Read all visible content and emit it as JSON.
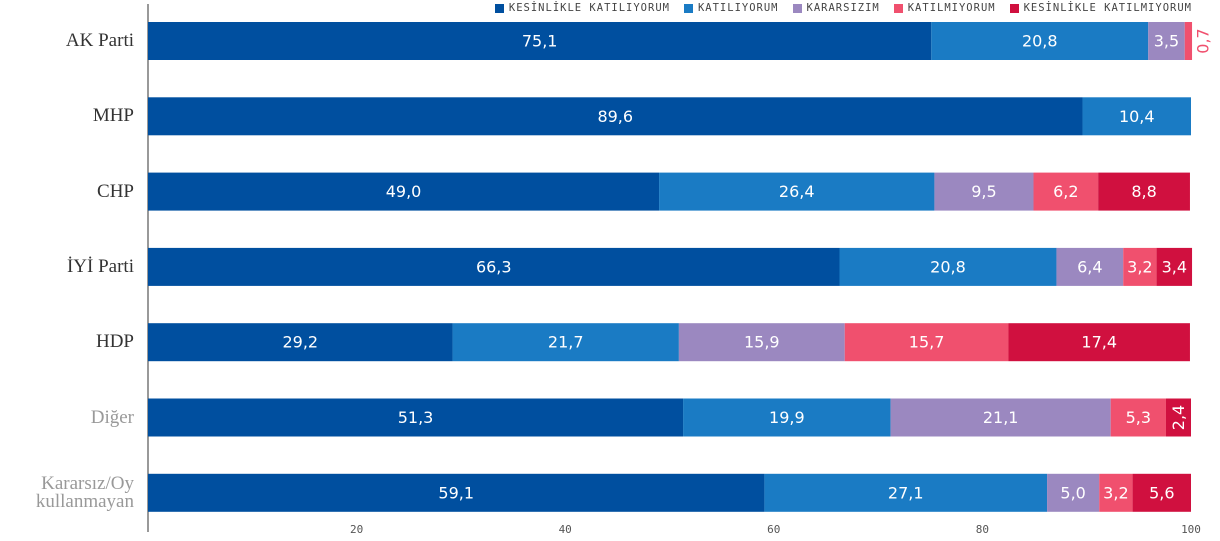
{
  "chart_data": {
    "type": "stacked_barh",
    "categories": [
      "AK Parti",
      "MHP",
      "CHP",
      "İYİ Parti",
      "HDP",
      "Diğer",
      "Kararsız/Oy kullanmayan"
    ],
    "series": [
      {
        "name": "KESİNLİKLE KATILIYORUM",
        "color": "#004f9f",
        "values": [
          75.1,
          89.6,
          49.0,
          66.3,
          29.2,
          51.3,
          59.1
        ],
        "value_labels": [
          "75,1",
          "89,6",
          "49,0",
          "66,3",
          "29,2",
          "51,3",
          "59,1"
        ]
      },
      {
        "name": "KATILIYORUM",
        "color": "#1a7bc4",
        "values": [
          20.8,
          10.4,
          26.4,
          20.8,
          21.7,
          19.9,
          27.1
        ],
        "value_labels": [
          "20,8",
          "10,4",
          "26,4",
          "20,8",
          "21,7",
          "19,9",
          "27,1"
        ]
      },
      {
        "name": "KARARSIZIM",
        "color": "#9b88c0",
        "values": [
          3.5,
          null,
          9.5,
          6.4,
          15.9,
          21.1,
          5.0
        ],
        "value_labels": [
          "3,5",
          null,
          "9,5",
          "6,4",
          "15,9",
          "21,1",
          "5,0"
        ]
      },
      {
        "name": "KATILMIYORUM",
        "color": "#f0506e",
        "values": [
          0.7,
          null,
          6.2,
          3.2,
          15.7,
          5.3,
          3.2
        ],
        "value_labels": [
          "0,7",
          null,
          "6,2",
          "3,2",
          "15,7",
          "5,3",
          "3,2"
        ]
      },
      {
        "name": "KESİNLİKLE KATILMIYORUM",
        "color": "#d0103f",
        "values": [
          null,
          null,
          8.8,
          3.4,
          17.4,
          2.4,
          5.6
        ],
        "value_labels": [
          null,
          null,
          "8,8",
          "3,4",
          "17,4",
          "2,4",
          "5,6"
        ]
      }
    ],
    "xlim": [
      0,
      100
    ],
    "xticks": [
      20,
      40,
      60,
      80,
      100
    ],
    "grid": false
  }
}
